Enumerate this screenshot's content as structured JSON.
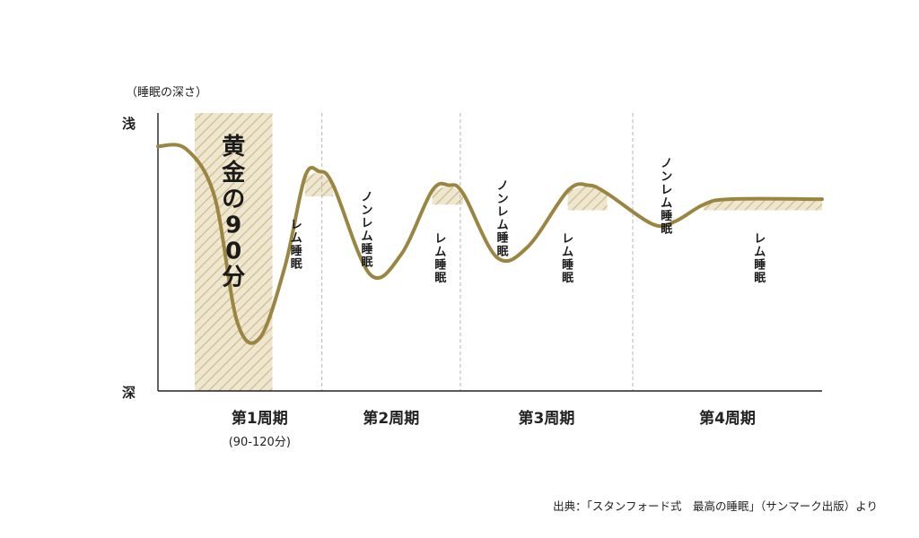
{
  "chart_data": {
    "type": "line",
    "title": "",
    "ylabel": "（睡眠の深さ）",
    "y_axis_top_label": "浅",
    "y_axis_bottom_label": "深",
    "categories": [
      "第1周期",
      "第2周期",
      "第3周期",
      "第4周期"
    ],
    "first_category_note": "(90-120分)",
    "series": [
      {
        "name": "",
        "color": "#9b8641",
        "note": "sleep depth: 0 = 浅 (shallow), 100 = 深 (deep); x in minutes",
        "points": [
          [
            0,
            12
          ],
          [
            20,
            13
          ],
          [
            40,
            30
          ],
          [
            56,
            75
          ],
          [
            72,
            81
          ],
          [
            90,
            55
          ],
          [
            104,
            23
          ],
          [
            114,
            21
          ],
          [
            124,
            26
          ],
          [
            150,
            58
          ],
          [
            172,
            51
          ],
          [
            194,
            28
          ],
          [
            206,
            26
          ],
          [
            216,
            29
          ],
          [
            240,
            52
          ],
          [
            262,
            48
          ],
          [
            290,
            28
          ],
          [
            305,
            26
          ],
          [
            318,
            29
          ],
          [
            350,
            40
          ],
          [
            366,
            39
          ],
          [
            386,
            33
          ],
          [
            405,
            31
          ],
          [
            470,
            31
          ]
        ]
      }
    ],
    "ylim": [
      0,
      100
    ],
    "xlim": [
      0,
      470
    ],
    "period_boundaries": [
      116,
      214,
      336
    ],
    "highlight_region": {
      "label": "黄金の90分",
      "x_start": 26,
      "x_end": 81
    },
    "annotations": [
      {
        "label": "ノンレム睡眠",
        "x": 148,
        "y": 28
      },
      {
        "label": "レム睡眠",
        "x": 98,
        "y": 38
      },
      {
        "label": "ノンレム睡眠",
        "x": 244,
        "y": 24
      },
      {
        "label": "レム睡眠",
        "x": 200,
        "y": 43
      },
      {
        "label": "ノンレム睡眠",
        "x": 360,
        "y": 16
      },
      {
        "label": "レム睡眠",
        "x": 290,
        "y": 43
      },
      {
        "label": "レム睡眠",
        "x": 426,
        "y": 43
      }
    ],
    "source": "出典：「スタンフォード式　最高の睡眠」（サンマーク出版）より"
  }
}
